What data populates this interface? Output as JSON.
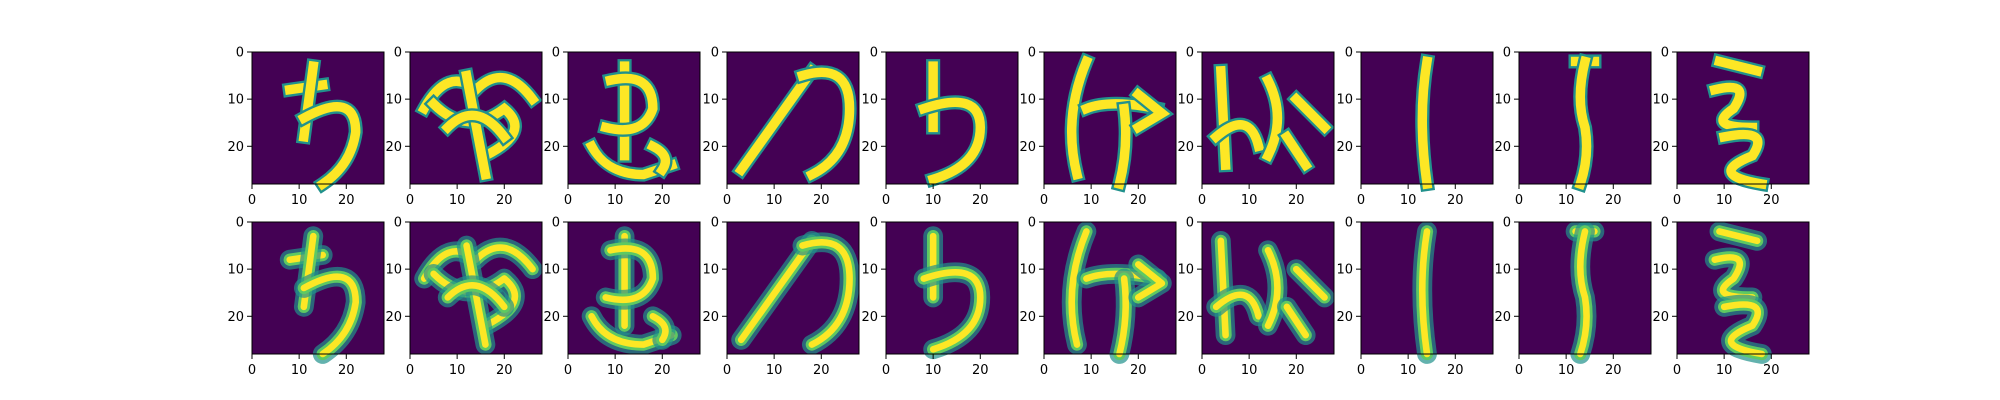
{
  "colors": {
    "background": "#440154",
    "stroke_bright": "#fde725",
    "stroke_mid": "#21918c",
    "stroke_light": "#5ec962",
    "stroke_dark": "#3b528b",
    "axis": "#000000"
  },
  "colormap": "viridis",
  "layout": {
    "rows": 2,
    "columns": 10
  },
  "axes": {
    "x_ticks": [
      "0",
      "10",
      "20"
    ],
    "y_ticks": [
      "0",
      "10",
      "20"
    ],
    "xlim": [
      0,
      28
    ],
    "ylim": [
      28,
      0
    ]
  },
  "rows": [
    {
      "kind": "original"
    },
    {
      "kind": "reconstruction"
    }
  ]
}
